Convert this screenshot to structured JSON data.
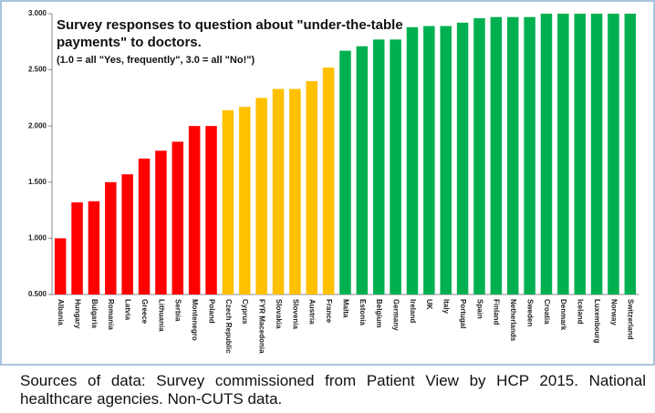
{
  "chart_data": {
    "type": "bar",
    "title": "Survey responses to question about \"under-the-table payments\" to doctors.",
    "subtitle": "(1.0 = all \"Yes, frequently\", 3.0 = all \"No!\")",
    "categories": [
      "Albania",
      "Hungary",
      "Bulgaria",
      "Romania",
      "Latvia",
      "Greece",
      "Lithuania",
      "Serbia",
      "Montenegro",
      "Poland",
      "Czech Republic",
      "Cyprus",
      "FYR Macedonia",
      "Slovakia",
      "Slovenia",
      "Austria",
      "France",
      "Malta",
      "Estonia",
      "Belgium",
      "Germany",
      "Ireland",
      "UK",
      "Italy",
      "Portugal",
      "Spain",
      "Finland",
      "Netherlands",
      "Sweden",
      "Croatia",
      "Denmark",
      "Iceland",
      "Luxembourg",
      "Norway",
      "Switzerland"
    ],
    "values": [
      1.0,
      1.32,
      1.33,
      1.5,
      1.57,
      1.71,
      1.78,
      1.86,
      2.0,
      2.0,
      2.14,
      2.17,
      2.25,
      2.33,
      2.33,
      2.4,
      2.52,
      2.67,
      2.71,
      2.77,
      2.77,
      2.88,
      2.89,
      2.89,
      2.92,
      2.96,
      2.97,
      2.97,
      2.97,
      3.0,
      3.0,
      3.0,
      3.0,
      3.0,
      3.0
    ],
    "colors": [
      "#ff0000",
      "#ff0000",
      "#ff0000",
      "#ff0000",
      "#ff0000",
      "#ff0000",
      "#ff0000",
      "#ff0000",
      "#ff0000",
      "#ff0000",
      "#ffc000",
      "#ffc000",
      "#ffc000",
      "#ffc000",
      "#ffc000",
      "#ffc000",
      "#ffc000",
      "#00b050",
      "#00b050",
      "#00b050",
      "#00b050",
      "#00b050",
      "#00b050",
      "#00b050",
      "#00b050",
      "#00b050",
      "#00b050",
      "#00b050",
      "#00b050",
      "#00b050",
      "#00b050",
      "#00b050",
      "#00b050",
      "#00b050",
      "#00b050"
    ],
    "ylim": [
      0.5,
      3.0
    ],
    "yticks": [
      {
        "value": 0.5,
        "label": "0.500"
      },
      {
        "value": 1.0,
        "label": "1.000"
      },
      {
        "value": 1.5,
        "label": "1.500"
      },
      {
        "value": 2.0,
        "label": "2.000"
      },
      {
        "value": 2.5,
        "label": "2.500"
      },
      {
        "value": 3.0,
        "label": "3.000"
      }
    ],
    "grid": false
  },
  "caption": "Sources of data: Survey commissioned from Patient View by HCP 2015. National healthcare agencies. Non-CUTS data."
}
